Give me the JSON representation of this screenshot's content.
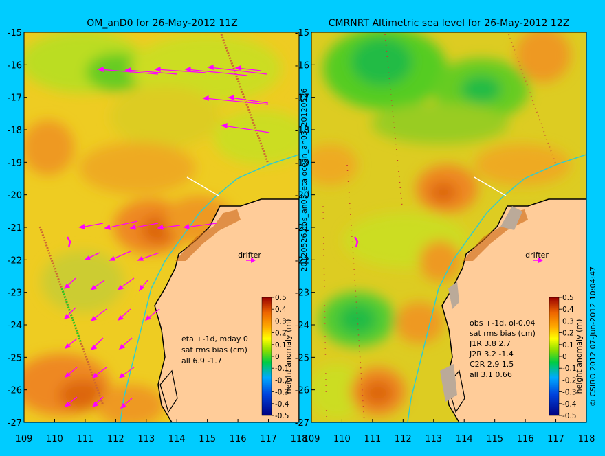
{
  "colors": {
    "background": "#00ccff",
    "land": "#ffcc99",
    "coast": "#000000",
    "isobath": "#33cccc",
    "vectors": "#ff00ff",
    "drifter": "#ff00ff"
  },
  "icons": [
    "drifter-arrow-icon",
    "velocity-arrow-icon"
  ],
  "left_panel": {
    "title": "OM_anD0 for 26-May-2012 11Z",
    "drifter_label": "drifter",
    "stats_lines": [
      "eta +-1d, mday 0",
      "sat rms bias (cm)",
      "all 6.9 -1.7"
    ]
  },
  "right_panel": {
    "title": "CMRNRT Altimetric sea level  for 26-May-2012 12Z",
    "drifter_label": "drifter",
    "stats_lines": [
      "obs +-1d, oi-0.04",
      "sat rms bias (cm)",
      "J1R   3.8 2.7",
      "J2R   3.2 -1.4",
      "C2R   2.9 1.5",
      "all 3.1 0.66"
    ]
  },
  "axes": {
    "lon_ticks": [
      "109",
      "110",
      "111",
      "112",
      "113",
      "114",
      "115",
      "116",
      "117",
      "118"
    ],
    "lat_ticks": [
      "-15",
      "-16",
      "-17",
      "-18",
      "-19",
      "-20",
      "-21",
      "-22",
      "-23",
      "-24",
      "-25",
      "-26",
      "-27"
    ]
  },
  "colorbar": {
    "title": "height anomaly (m)",
    "ticks": [
      "0.5",
      "0.4",
      "0.3",
      "0.2",
      "0.1",
      "0",
      "-0.1",
      "-0.2",
      "-0.3",
      "-0.4",
      "-0.5"
    ],
    "range": [
      -0.5,
      0.5
    ]
  },
  "side_labels": {
    "middle": "20120526.obs_an03_eta    ocean_an03_20120526",
    "right": "© CSIRO 2012   07-Jun-2012 10:04:47"
  }
}
